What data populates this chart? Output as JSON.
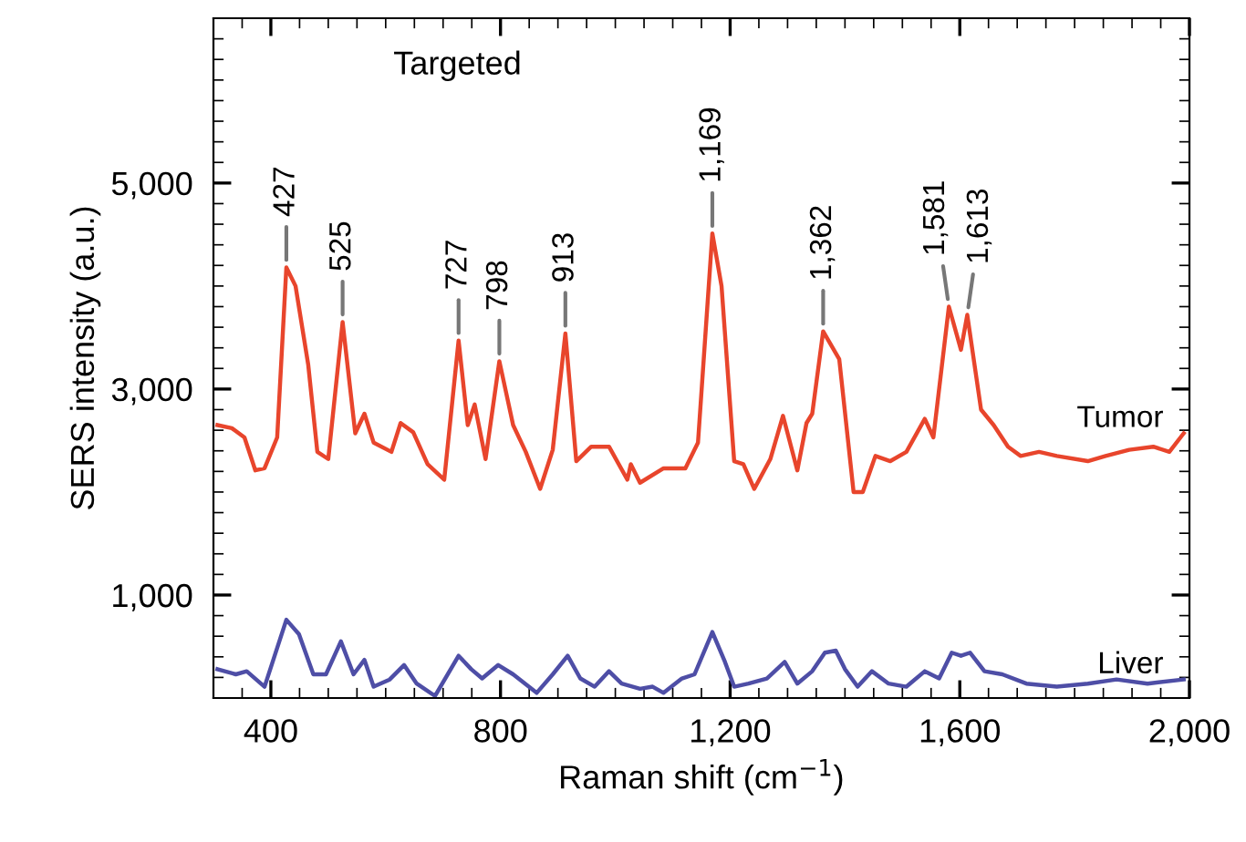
{
  "chart_data": {
    "type": "line",
    "title": "Targeted",
    "xlabel": "Raman shift (cm$^{−1}$)",
    "ylabel": "SERS intensity (a.u.)",
    "xlim": [
      300,
      2000
    ],
    "ylim": [
      0,
      6600
    ],
    "xticks": [
      {
        "value": 400,
        "label": "400"
      },
      {
        "value": 800,
        "label": "800"
      },
      {
        "value": 1200,
        "label": "1,200"
      },
      {
        "value": 1600,
        "label": "1,600"
      },
      {
        "value": 2000,
        "label": "2,000"
      }
    ],
    "yticks": [
      {
        "value": 1000,
        "label": "1,000"
      },
      {
        "value": 3000,
        "label": "3,000"
      },
      {
        "value": 5000,
        "label": "5,000"
      }
    ],
    "grid": false,
    "legend": false,
    "series": [
      {
        "name": "Tumor",
        "color": "#e8452c",
        "x": [
          307,
          332,
          354,
          373,
          389,
          411,
          427,
          443,
          465,
          481,
          500,
          525,
          547,
          563,
          579,
          610,
          626,
          648,
          673,
          702,
          727,
          743,
          755,
          774,
          798,
          822,
          844,
          869,
          891,
          913,
          932,
          958,
          989,
          1021,
          1027,
          1043,
          1084,
          1122,
          1144,
          1169,
          1185,
          1207,
          1223,
          1242,
          1270,
          1292,
          1317,
          1333,
          1343,
          1362,
          1390,
          1415,
          1431,
          1453,
          1479,
          1507,
          1539,
          1554,
          1581,
          1602,
          1613,
          1637,
          1659,
          1684,
          1706,
          1738,
          1769,
          1823,
          1854,
          1895,
          1937,
          1965,
          1990
        ],
        "values": [
          2650,
          2620,
          2530,
          2210,
          2230,
          2530,
          4180,
          4000,
          3240,
          2390,
          2320,
          3650,
          2570,
          2760,
          2480,
          2390,
          2670,
          2580,
          2270,
          2120,
          3470,
          2650,
          2850,
          2320,
          3270,
          2650,
          2390,
          2030,
          2410,
          3540,
          2300,
          2440,
          2440,
          2120,
          2270,
          2090,
          2230,
          2230,
          2480,
          4510,
          4000,
          2300,
          2270,
          2030,
          2320,
          2740,
          2210,
          2670,
          2760,
          3560,
          3290,
          2000,
          2000,
          2350,
          2300,
          2390,
          2710,
          2530,
          3800,
          3380,
          3720,
          2800,
          2650,
          2440,
          2350,
          2390,
          2350,
          2300,
          2350,
          2410,
          2440,
          2390,
          2570
        ]
      },
      {
        "name": "Liver",
        "color": "#4e4ea6",
        "x": [
          307,
          339,
          358,
          389,
          427,
          449,
          474,
          496,
          522,
          544,
          563,
          579,
          607,
          632,
          654,
          686,
          727,
          749,
          768,
          796,
          822,
          863,
          891,
          917,
          939,
          964,
          989,
          1011,
          1043,
          1065,
          1084,
          1116,
          1138,
          1169,
          1191,
          1207,
          1232,
          1264,
          1295,
          1317,
          1343,
          1365,
          1384,
          1400,
          1422,
          1447,
          1476,
          1507,
          1539,
          1564,
          1586,
          1602,
          1618,
          1643,
          1674,
          1716,
          1769,
          1823,
          1873,
          1927,
          1990
        ],
        "values": [
          280,
          230,
          260,
          110,
          760,
          620,
          230,
          230,
          550,
          230,
          370,
          110,
          180,
          320,
          140,
          20,
          410,
          280,
          190,
          320,
          230,
          50,
          230,
          410,
          190,
          110,
          260,
          140,
          90,
          110,
          50,
          190,
          230,
          640,
          350,
          110,
          140,
          190,
          350,
          140,
          260,
          440,
          460,
          280,
          110,
          260,
          140,
          110,
          260,
          190,
          440,
          410,
          440,
          260,
          230,
          140,
          110,
          140,
          180,
          140,
          180
        ]
      }
    ],
    "annotations": [
      {
        "text": "427",
        "x": 427,
        "y": 4180
      },
      {
        "text": "525",
        "x": 525,
        "y": 3650
      },
      {
        "text": "727",
        "x": 727,
        "y": 3470
      },
      {
        "text": "798",
        "x": 798,
        "y": 3270
      },
      {
        "text": "913",
        "x": 913,
        "y": 3540
      },
      {
        "text": "1,169",
        "x": 1169,
        "y": 4510
      },
      {
        "text": "1,362",
        "x": 1362,
        "y": 3560
      },
      {
        "text": "1,581",
        "x": 1581,
        "y": 3800
      },
      {
        "text": "1,613",
        "x": 1613,
        "y": 3720
      }
    ]
  }
}
